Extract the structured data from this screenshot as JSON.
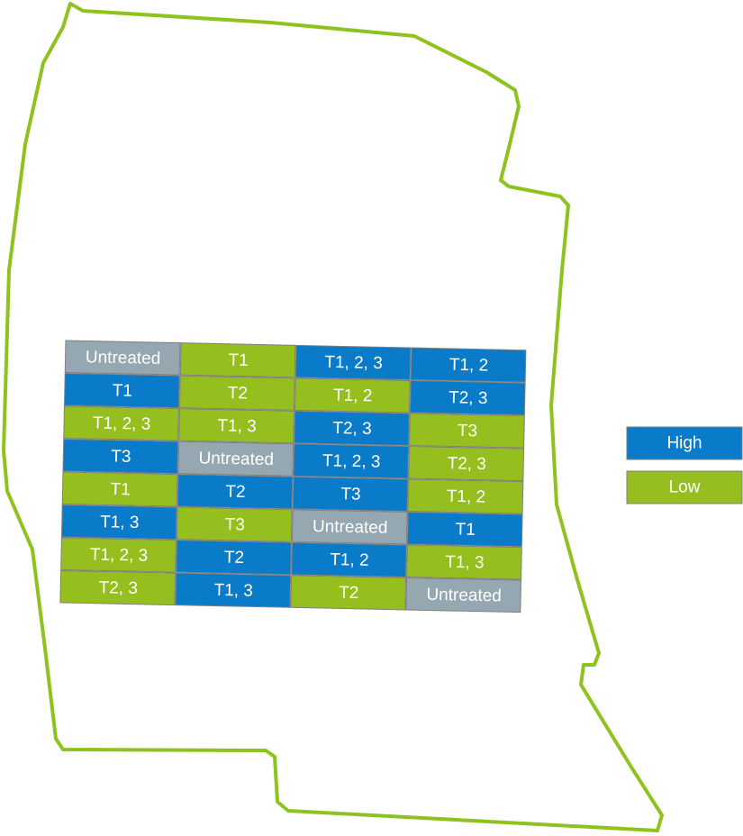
{
  "plots": {
    "rows": [
      [
        {
          "text": "Untreated",
          "color": "#95a7b1"
        },
        {
          "text": "T1",
          "color": "#95bf1f"
        },
        {
          "text": "T1, 2, 3",
          "color": "#0a7bc8"
        },
        {
          "text": "T1, 2",
          "color": "#0a7bc8"
        }
      ],
      [
        {
          "text": "T1",
          "color": "#0a7bc8"
        },
        {
          "text": "T2",
          "color": "#95bf1f"
        },
        {
          "text": "T1, 2",
          "color": "#95bf1f"
        },
        {
          "text": "T2, 3",
          "color": "#0a7bc8"
        }
      ],
      [
        {
          "text": "T1, 2, 3",
          "color": "#95bf1f"
        },
        {
          "text": "T1, 3",
          "color": "#95bf1f"
        },
        {
          "text": "T2, 3",
          "color": "#0a7bc8"
        },
        {
          "text": "T3",
          "color": "#95bf1f"
        }
      ],
      [
        {
          "text": "T3",
          "color": "#0a7bc8"
        },
        {
          "text": "Untreated",
          "color": "#95a7b1"
        },
        {
          "text": "T1, 2, 3",
          "color": "#0a7bc8"
        },
        {
          "text": "T2, 3",
          "color": "#95bf1f"
        }
      ],
      [
        {
          "text": "T1",
          "color": "#95bf1f"
        },
        {
          "text": "T2",
          "color": "#0a7bc8"
        },
        {
          "text": "T3",
          "color": "#0a7bc8"
        },
        {
          "text": "T1, 2",
          "color": "#95bf1f"
        }
      ],
      [
        {
          "text": "T1, 3",
          "color": "#0a7bc8"
        },
        {
          "text": "T3",
          "color": "#95bf1f"
        },
        {
          "text": "Untreated",
          "color": "#95a7b1"
        },
        {
          "text": "T1",
          "color": "#0a7bc8"
        }
      ],
      [
        {
          "text": "T1, 2, 3",
          "color": "#95bf1f"
        },
        {
          "text": "T2",
          "color": "#0a7bc8"
        },
        {
          "text": "T1, 2",
          "color": "#0a7bc8"
        },
        {
          "text": "T1, 3",
          "color": "#95bf1f"
        }
      ],
      [
        {
          "text": "T2, 3",
          "color": "#95bf1f"
        },
        {
          "text": "T1, 3",
          "color": "#0a7bc8"
        },
        {
          "text": "T2",
          "color": "#95bf1f"
        },
        {
          "text": "Untreated",
          "color": "#95a7b1"
        }
      ]
    ]
  },
  "legend": [
    {
      "label": "High",
      "color": "#0a7bc8"
    },
    {
      "label": "Low",
      "color": "#95bf1f"
    }
  ]
}
